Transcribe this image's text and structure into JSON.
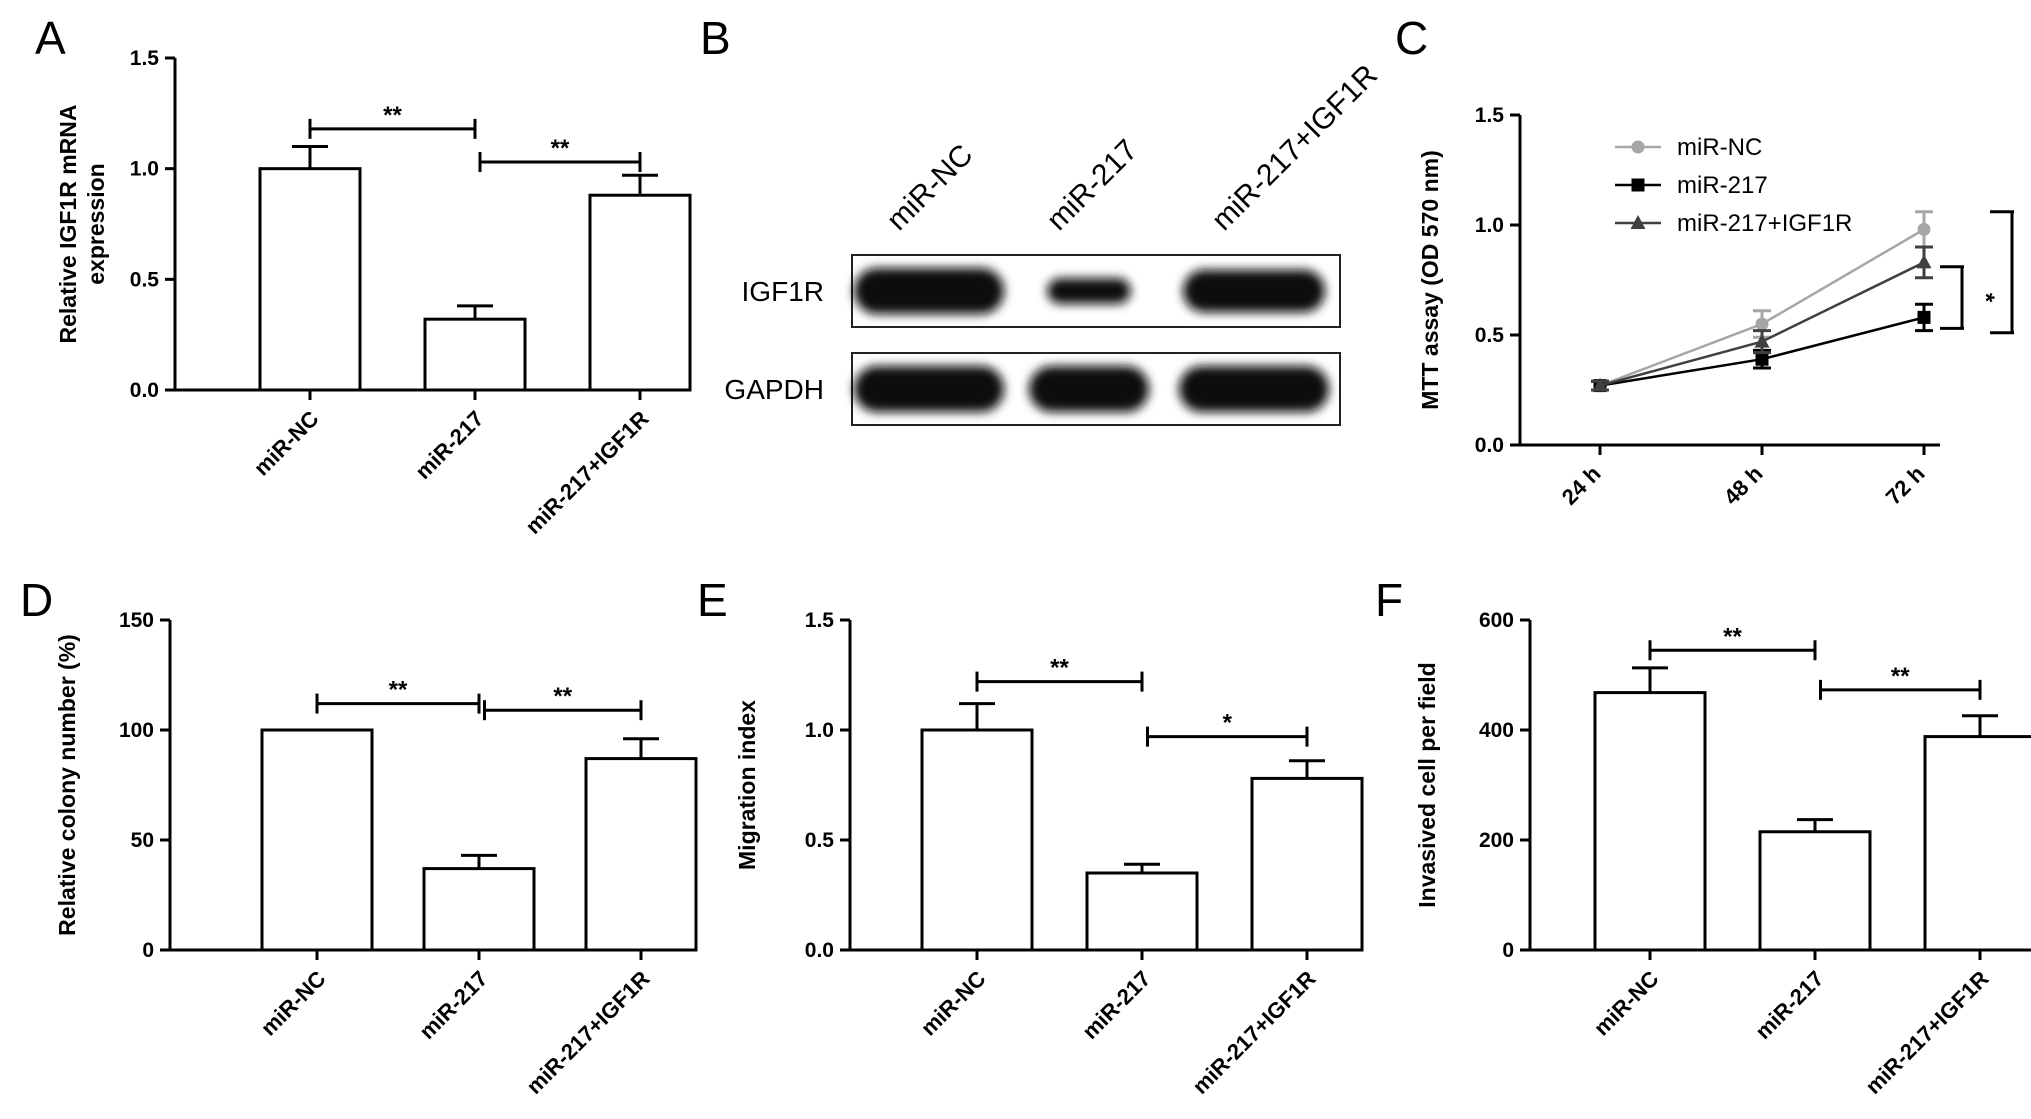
{
  "panels": [
    {
      "letter": "A",
      "type": "bar",
      "ylabel": [
        "Relative IGF1R mRNA",
        "expression"
      ],
      "ylim": [
        0,
        1.5
      ],
      "yticks": [
        "0.0",
        "0.5",
        "1.0",
        "1.5"
      ],
      "categories": [
        "miR-NC",
        "miR-217",
        "miR-217+IGF1R"
      ],
      "values": [
        1.0,
        0.32,
        0.88
      ],
      "errors": [
        0.1,
        0.06,
        0.09
      ],
      "significance": [
        {
          "from": 0,
          "to": 1,
          "level": 1.18,
          "label": "**"
        },
        {
          "from": 1,
          "to": 2,
          "level": 1.03,
          "label": "**"
        }
      ]
    },
    {
      "letter": "B",
      "type": "western-blot",
      "lanes": [
        "miR-NC",
        "miR-217",
        "miR-217+IGF1R"
      ],
      "rows": [
        {
          "label": "IGF1R",
          "intensity": [
            1.0,
            0.32,
            0.88
          ]
        },
        {
          "label": "GAPDH",
          "intensity": [
            1.0,
            1.0,
            1.0
          ]
        }
      ]
    },
    {
      "letter": "C",
      "type": "line",
      "ylabel": "MTT assay (OD 570 nm)",
      "ylim": [
        0,
        1.5
      ],
      "yticks": [
        "0.0",
        "0.5",
        "1.0",
        "1.5"
      ],
      "categories": [
        "24 h",
        "48 h",
        "72 h"
      ],
      "series": [
        {
          "name": "miR-NC",
          "color": "#a6a6a6",
          "marker": "circle",
          "values": [
            0.27,
            0.55,
            0.98
          ],
          "errors": [
            0.02,
            0.06,
            0.08
          ]
        },
        {
          "name": "miR-217",
          "color": "#000000",
          "marker": "square",
          "values": [
            0.27,
            0.39,
            0.58
          ],
          "errors": [
            0.02,
            0.04,
            0.06
          ]
        },
        {
          "name": "miR-217+IGF1R",
          "color": "#404040",
          "marker": "triangle",
          "values": [
            0.27,
            0.47,
            0.83
          ],
          "errors": [
            0.02,
            0.05,
            0.07
          ]
        }
      ],
      "significance": [
        {
          "low": 0.53,
          "high": 0.81,
          "label": "*"
        },
        {
          "low": 0.51,
          "high": 1.06,
          "label": "**"
        }
      ],
      "legend": "top-left"
    },
    {
      "letter": "D",
      "type": "bar",
      "ylabel": [
        "Relative colony number (%)"
      ],
      "ylim": [
        0,
        150
      ],
      "yticks": [
        "0",
        "50",
        "100",
        "150"
      ],
      "categories": [
        "miR-NC",
        "miR-217",
        "miR-217+IGF1R"
      ],
      "values": [
        100,
        37,
        87
      ],
      "errors": [
        0,
        6,
        9
      ],
      "significance": [
        {
          "from": 0,
          "to": 1,
          "level": 112,
          "label": "**"
        },
        {
          "from": 1,
          "to": 2,
          "level": 109,
          "label": "**"
        }
      ]
    },
    {
      "letter": "E",
      "type": "bar",
      "ylabel": [
        "Migration index"
      ],
      "ylim": [
        0,
        1.5
      ],
      "yticks": [
        "0.0",
        "0.5",
        "1.0",
        "1.5"
      ],
      "categories": [
        "miR-NC",
        "miR-217",
        "miR-217+IGF1R"
      ],
      "values": [
        1.0,
        0.35,
        0.78
      ],
      "errors": [
        0.12,
        0.04,
        0.08
      ],
      "significance": [
        {
          "from": 0,
          "to": 1,
          "level": 1.22,
          "label": "**"
        },
        {
          "from": 1,
          "to": 2,
          "level": 0.97,
          "label": "*"
        }
      ]
    },
    {
      "letter": "F",
      "type": "bar",
      "ylabel": [
        "Invasived cell per field"
      ],
      "ylim": [
        0,
        600
      ],
      "yticks": [
        "0",
        "200",
        "400",
        "600"
      ],
      "categories": [
        "miR-NC",
        "miR-217",
        "miR-217+IGF1R"
      ],
      "values": [
        468,
        215,
        388
      ],
      "errors": [
        45,
        22,
        38
      ],
      "significance": [
        {
          "from": 0,
          "to": 1,
          "level": 545,
          "label": "**"
        },
        {
          "from": 1,
          "to": 2,
          "level": 473,
          "label": "**"
        }
      ]
    }
  ]
}
